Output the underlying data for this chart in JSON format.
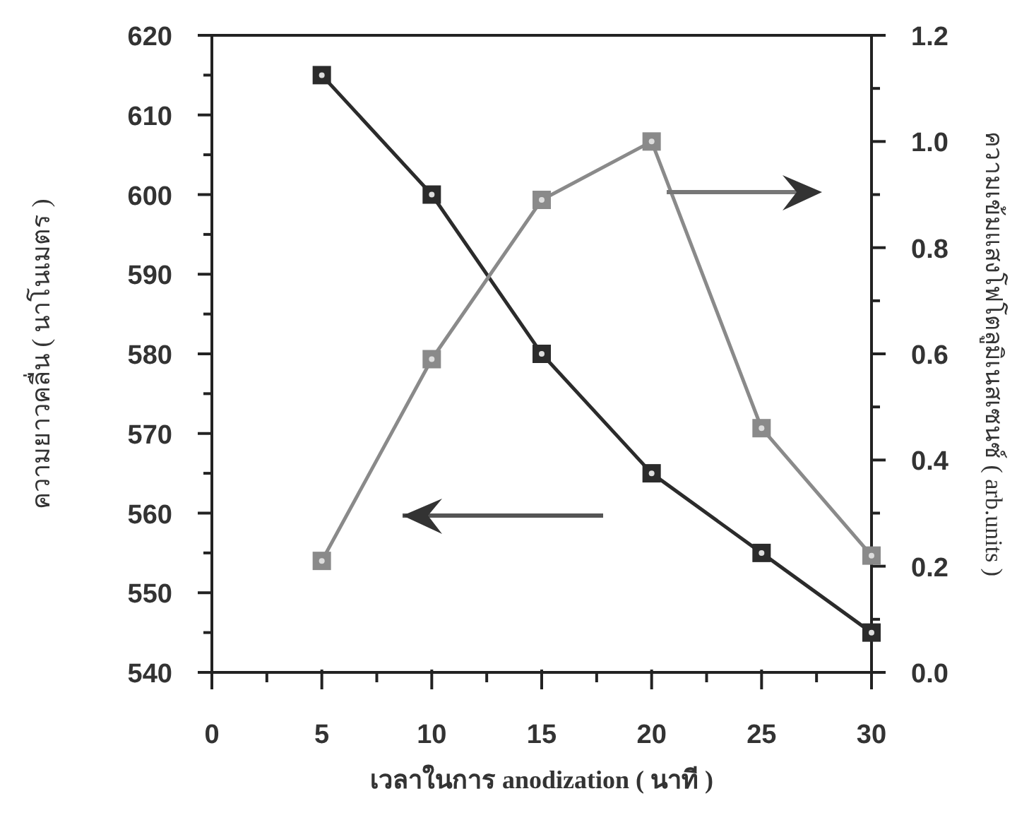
{
  "chart_data": {
    "type": "line",
    "xlabel": "เวลาในการ anodization ( นาที )",
    "ylabel": "ความยาวคลื่น ( นาโนเมตร )",
    "y2label": "ความเข้มแสงโฟโตลูมิเนสเซนซ์ ( arb.units )",
    "x": [
      5,
      10,
      15,
      20,
      25,
      30
    ],
    "xlim": [
      0,
      30
    ],
    "xticks": [
      0,
      5,
      10,
      15,
      20,
      25,
      30
    ],
    "ylim": [
      540,
      620
    ],
    "yticks": [
      540,
      550,
      560,
      570,
      580,
      590,
      600,
      610,
      620
    ],
    "y2lim": [
      0,
      1.2
    ],
    "y2ticks": [
      {
        "value": 0,
        "label": "0.0"
      },
      {
        "value": 0.2,
        "label": "0.2"
      },
      {
        "value": 0.4,
        "label": "0.4"
      },
      {
        "value": 0.6,
        "label": "0.6"
      },
      {
        "value": 0.8,
        "label": "0.8"
      },
      {
        "value": 1,
        "label": "1.0"
      },
      {
        "value": 1.2,
        "label": "1.2"
      }
    ],
    "marker": "square",
    "grid": false,
    "series": [
      {
        "color": "#2b2b2b",
        "values": [
          615,
          600,
          580,
          565,
          555,
          545
        ]
      },
      {
        "color": "#8a8a8a",
        "axis": "y2",
        "values": [
          0.21,
          0.59,
          0.89,
          1.0,
          0.46,
          0.22
        ]
      }
    ]
  }
}
